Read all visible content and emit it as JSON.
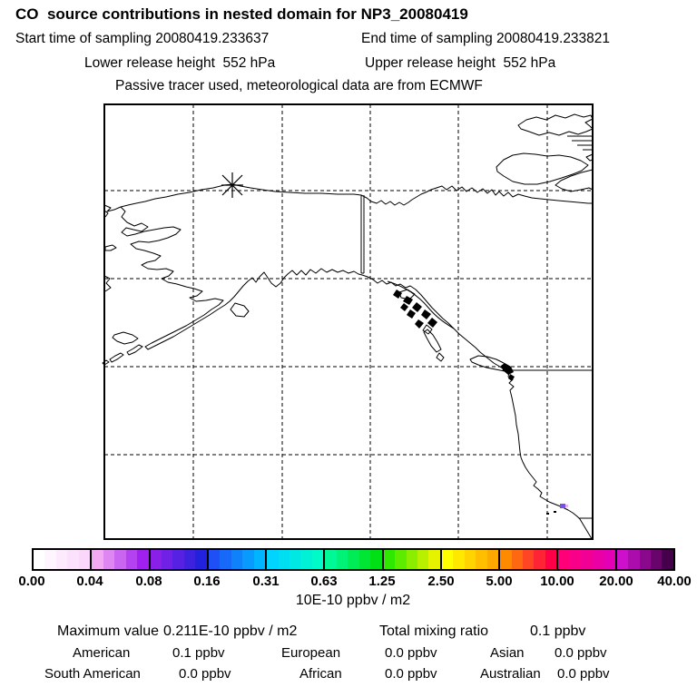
{
  "header": {
    "title": "CO  source contributions in nested domain for NP3_20080419",
    "start_time": "Start time of sampling 20080419.233637",
    "end_time": "End time of sampling 20080419.233821",
    "lower_release": "Lower release height  552 hPa",
    "upper_release": "Upper release height  552 hPa",
    "tracer_note": "Passive tracer used, meteorological data are from ECMWF"
  },
  "colorbar": {
    "tick_labels": [
      "0.00",
      "0.04",
      "0.08",
      "0.16",
      "0.31",
      "0.63",
      "1.25",
      "2.50",
      "5.00",
      "10.00",
      "20.00",
      "40.00"
    ],
    "unit_label": "10E-10 ppbv / m2",
    "segments": [
      {
        "from": "#FFFFFF",
        "to": "#FBD7FB"
      },
      {
        "from": "#F2A9F2",
        "to": "#A020F0"
      },
      {
        "from": "#8A20E8",
        "to": "#2222DC"
      },
      {
        "from": "#1E50F5",
        "to": "#00B4FF"
      },
      {
        "from": "#00D4FF",
        "to": "#00FBC8"
      },
      {
        "from": "#00F896",
        "to": "#00E015"
      },
      {
        "from": "#2FE800",
        "to": "#E6F300"
      },
      {
        "from": "#FFFF00",
        "to": "#FFA800"
      },
      {
        "from": "#FF8A00",
        "to": "#FF0048"
      },
      {
        "from": "#FF0078",
        "to": "#E400B4"
      },
      {
        "from": "#CC10CC",
        "to": "#46004B"
      }
    ]
  },
  "map": {
    "line_color": "#000000",
    "release_marker": "asterisk",
    "cells": [
      {
        "name": "concentration-cell-violet",
        "color": "#7A4FE8"
      },
      {
        "name": "concentration-cell-pink",
        "color": "#F9A8F9"
      }
    ]
  },
  "stats": {
    "maximum_label": "Maximum value",
    "maximum_value": "0.211E-10 ppbv / m2",
    "total_label": "Total mixing ratio",
    "total_value": "0.1 ppbv",
    "regions": [
      {
        "label": "American",
        "value": "0.1 ppbv"
      },
      {
        "label": "European",
        "value": "0.0 ppbv"
      },
      {
        "label": "Asian",
        "value": "0.0 ppbv"
      },
      {
        "label": "South American",
        "value": "0.0 ppbv"
      },
      {
        "label": "African",
        "value": "0.0 ppbv"
      },
      {
        "label": "Australian",
        "value": "0.0 ppbv"
      }
    ]
  },
  "chart_data": {
    "type": "map",
    "title": "CO source contributions in nested domain for NP3_20080419",
    "colorbar_ticks": [
      0.0,
      0.04,
      0.08,
      0.16,
      0.31,
      0.63,
      1.25,
      2.5,
      5.0,
      10.0,
      20.0,
      40.0
    ],
    "colorbar_unit": "10E-10 ppbv / m2",
    "maximum_value": "0.211E-10 ppbv / m2",
    "total_mixing_ratio_ppbv": 0.1,
    "contributions_ppbv": {
      "American": 0.1,
      "European": 0.0,
      "Asian": 0.0,
      "South American": 0.0,
      "African": 0.0,
      "Australian": 0.0
    }
  }
}
